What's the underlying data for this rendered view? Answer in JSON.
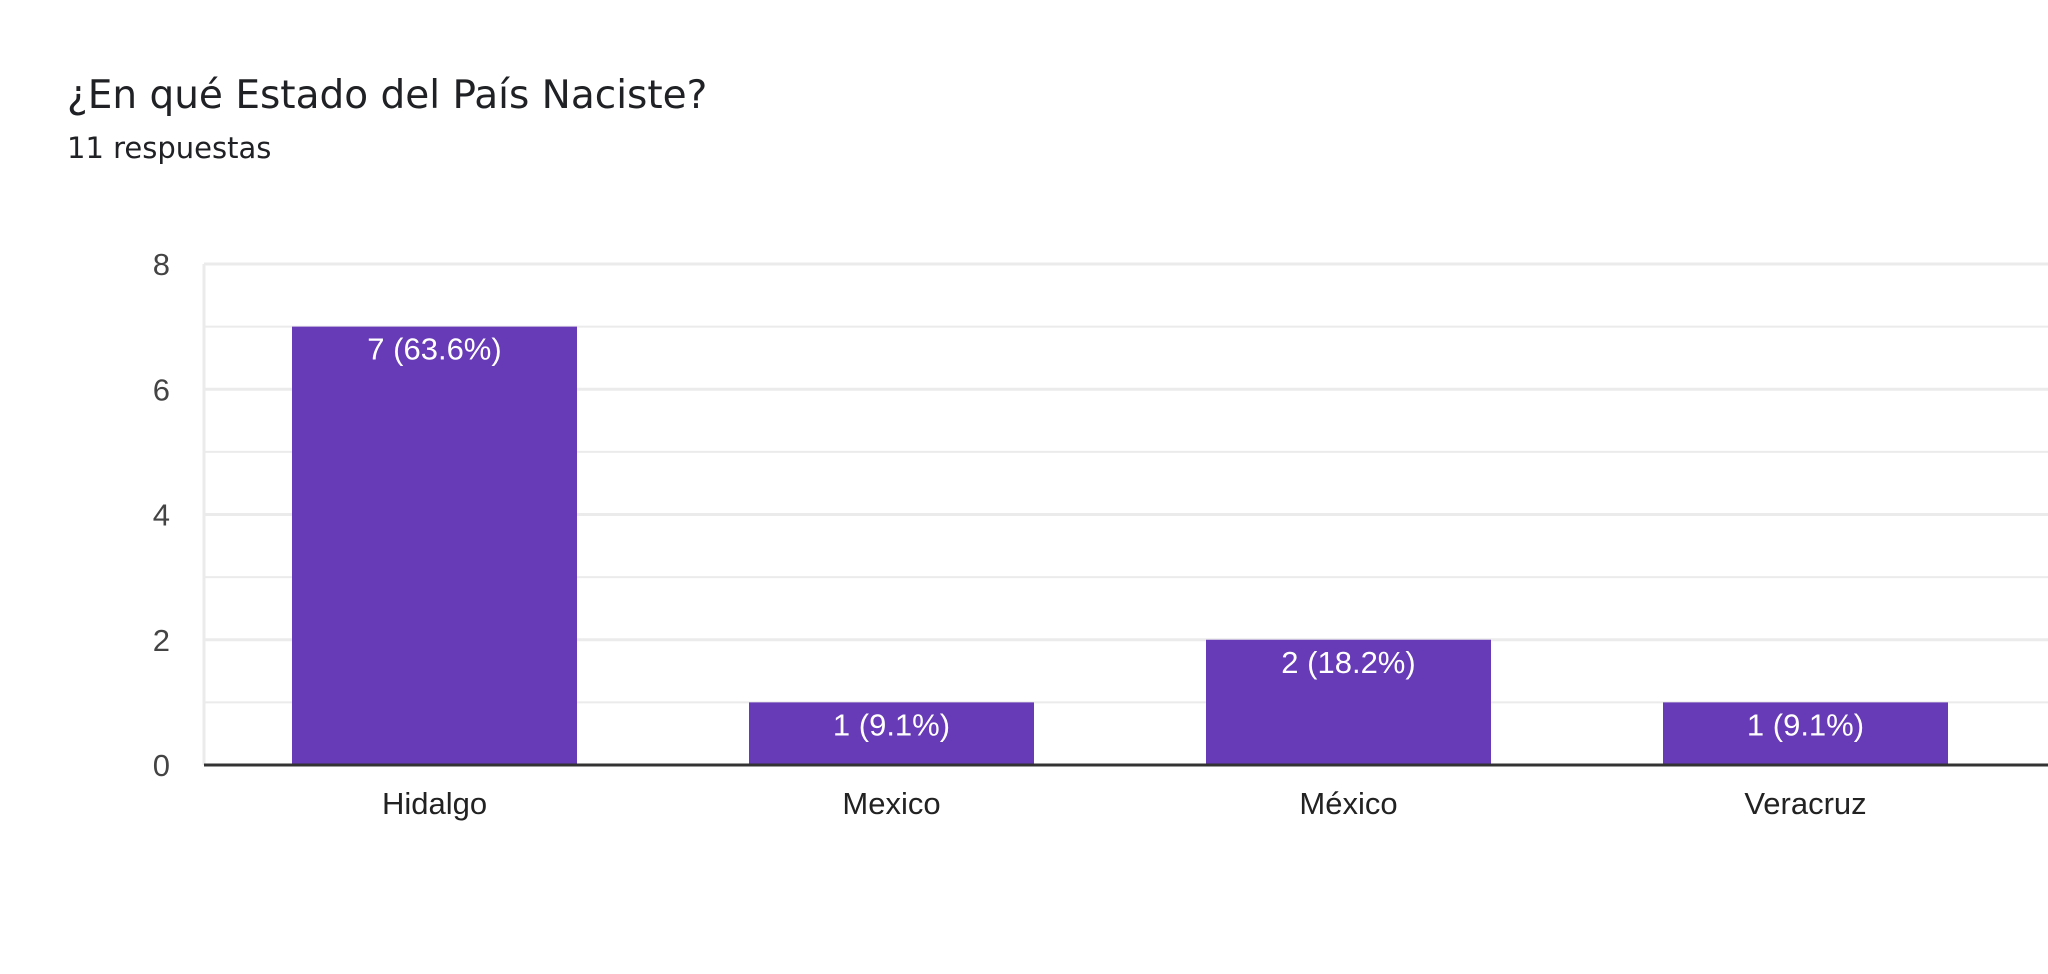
{
  "header": {
    "title": "¿En qué Estado del País Naciste?",
    "subtitle": "11 respuestas"
  },
  "colors": {
    "bar": "#673ab7",
    "grid": "#ebebeb",
    "axis": "#333333",
    "text": "#202124"
  },
  "chart_data": {
    "type": "bar",
    "title": "¿En qué Estado del País Naciste?",
    "xlabel": "",
    "ylabel": "",
    "categories": [
      "Hidalgo",
      "Mexico",
      "México",
      "Veracruz"
    ],
    "values": [
      7,
      1,
      2,
      1
    ],
    "data_labels": [
      "7 (63.6%)",
      "1 (9.1%)",
      "2 (18.2%)",
      "1 (9.1%)"
    ],
    "ylim": [
      0,
      8
    ],
    "yticks": [
      0,
      2,
      4,
      6,
      8
    ],
    "grid": true,
    "legend": "none"
  }
}
